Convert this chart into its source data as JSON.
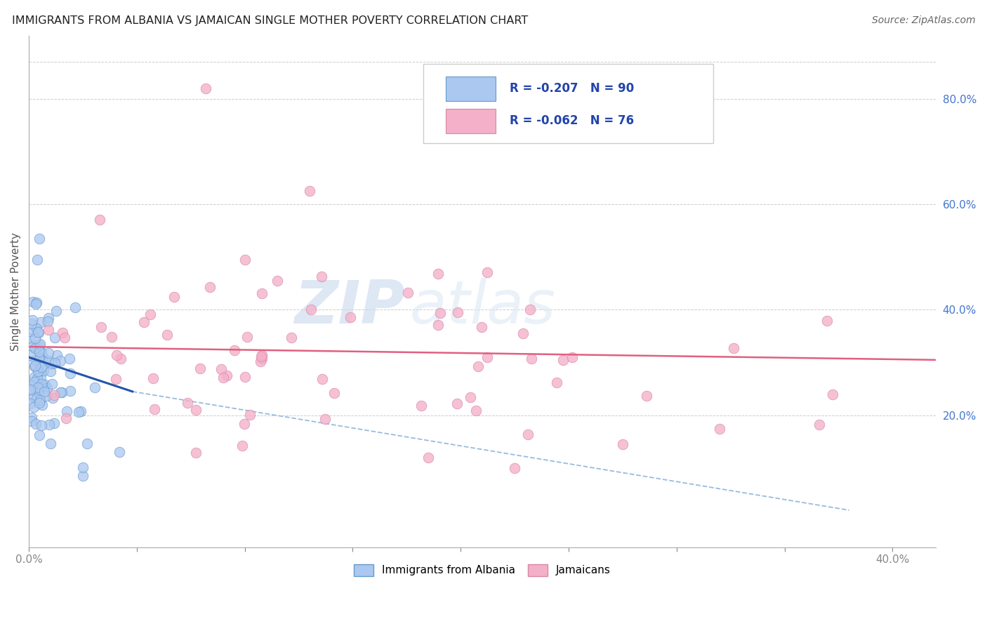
{
  "title": "IMMIGRANTS FROM ALBANIA VS JAMAICAN SINGLE MOTHER POVERTY CORRELATION CHART",
  "source": "Source: ZipAtlas.com",
  "ylabel": "Single Mother Poverty",
  "ylabel_right_ticks": [
    "80.0%",
    "60.0%",
    "40.0%",
    "20.0%"
  ],
  "ylabel_right_vals": [
    0.8,
    0.6,
    0.4,
    0.2
  ],
  "xlim": [
    0.0,
    0.42
  ],
  "ylim": [
    -0.05,
    0.92
  ],
  "watermark_zip": "ZIP",
  "watermark_atlas": "atlas",
  "albania_scatter_color": "#aac8f0",
  "albania_scatter_edge": "#6699cc",
  "jamaican_scatter_color": "#f4b0c8",
  "jamaican_scatter_edge": "#d888a8",
  "albania_line_color": "#2255aa",
  "jamaica_line_color": "#e06080",
  "dashed_line_color": "#99bbdd",
  "background_color": "#ffffff",
  "grid_color": "#cccccc",
  "title_color": "#222222",
  "source_color": "#666666",
  "right_tick_color": "#4477cc",
  "legend_text_color": "#2244aa",
  "legend_r1": "R = -0.207",
  "legend_n1": "N = 90",
  "legend_r2": "R = -0.062",
  "legend_n2": "N = 76",
  "legend_bottom_1": "Immigrants from Albania",
  "legend_bottom_2": "Jamaicans",
  "albania_N": 90,
  "jamaican_N": 76,
  "albania_line_x0": 0.0,
  "albania_line_x1": 0.048,
  "albania_line_y0": 0.31,
  "albania_line_y1": 0.245,
  "dashed_line_x0": 0.048,
  "dashed_line_x1": 0.38,
  "dashed_line_y0": 0.245,
  "dashed_line_y1": 0.02,
  "jamaica_line_x0": 0.0,
  "jamaica_line_x1": 0.42,
  "jamaica_line_y0": 0.33,
  "jamaica_line_y1": 0.305
}
